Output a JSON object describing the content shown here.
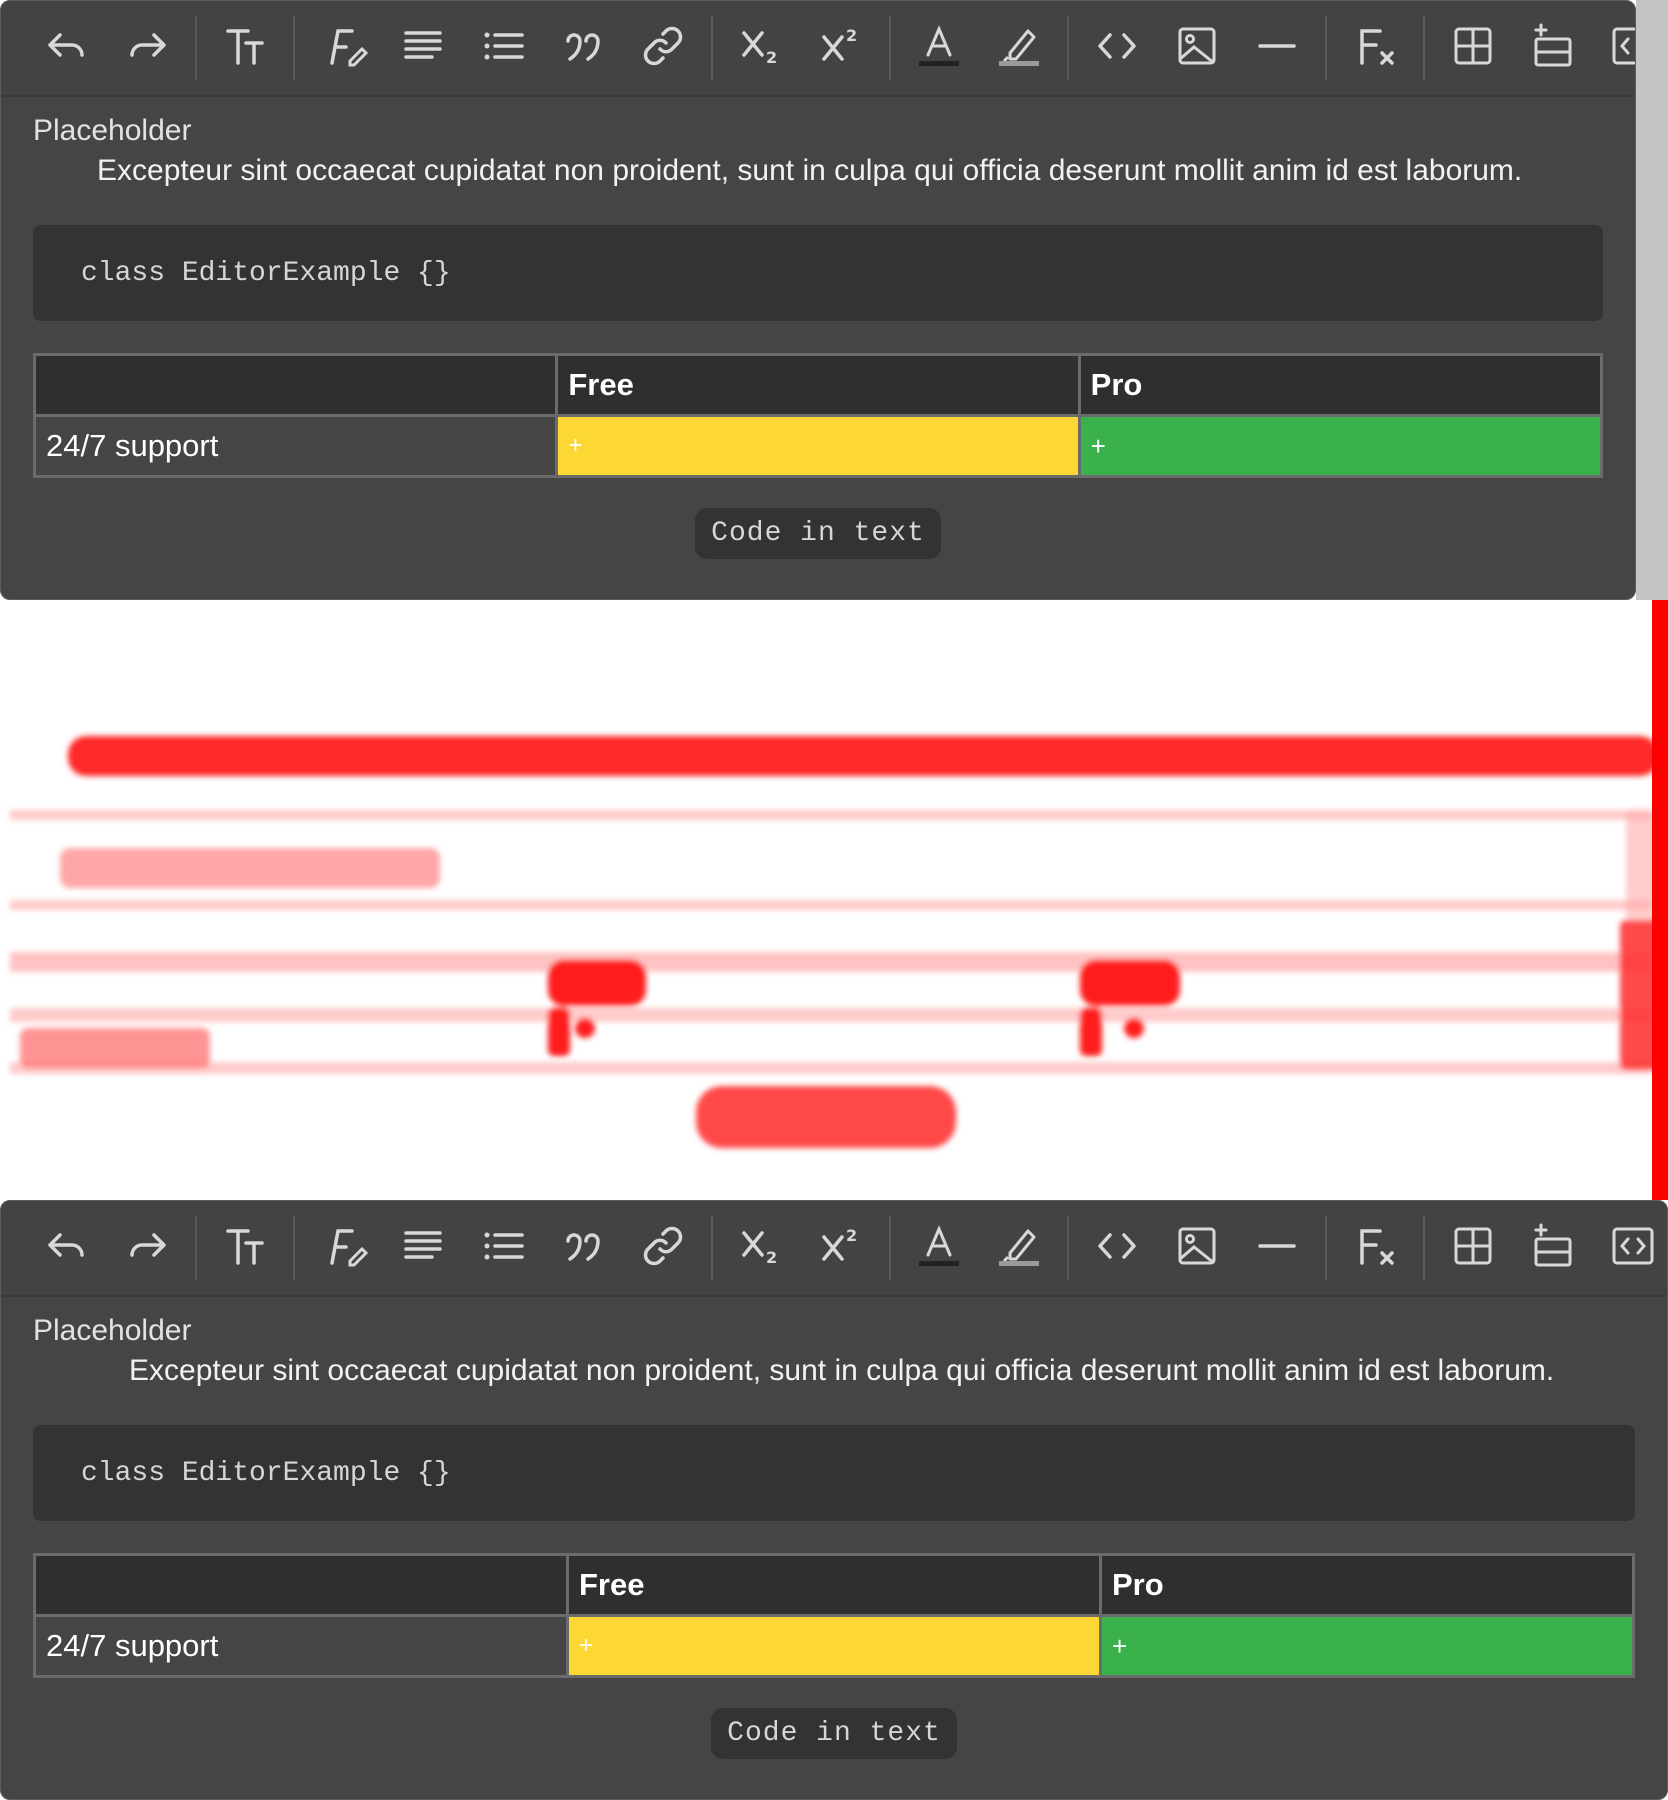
{
  "toolbar": {
    "buttons": [
      {
        "icon": "undo-icon",
        "name": "undo-button"
      },
      {
        "icon": "redo-icon",
        "name": "redo-button"
      },
      {
        "icon": "text-size-icon",
        "name": "text-size-button"
      },
      {
        "icon": "font-style-icon",
        "name": "font-style-button"
      },
      {
        "icon": "align-icon",
        "name": "align-button"
      },
      {
        "icon": "bullet-list-icon",
        "name": "bullet-list-button"
      },
      {
        "icon": "quote-icon",
        "name": "quote-button"
      },
      {
        "icon": "link-icon",
        "name": "link-button"
      },
      {
        "icon": "subscript-icon",
        "name": "subscript-button"
      },
      {
        "icon": "superscript-icon",
        "name": "superscript-button"
      },
      {
        "icon": "text-color-icon",
        "name": "text-color-button"
      },
      {
        "icon": "highlight-icon",
        "name": "highlight-button"
      },
      {
        "icon": "code-icon",
        "name": "code-button"
      },
      {
        "icon": "image-icon",
        "name": "image-button"
      },
      {
        "icon": "horizontal-rule-icon",
        "name": "horizontal-rule-button"
      },
      {
        "icon": "clear-format-icon",
        "name": "clear-format-button"
      },
      {
        "icon": "table-icon",
        "name": "table-button"
      },
      {
        "icon": "insert-row-icon",
        "name": "insert-row-button"
      },
      {
        "icon": "html-source-icon",
        "name": "html-source-button"
      }
    ]
  },
  "editor": {
    "placeholder": "Placeholder",
    "paragraph": "Excepteur sint occaecat cupidatat non proident, sunt in culpa qui officia deserunt mollit anim id est laborum.",
    "code_block": "class EditorExample {}",
    "table": {
      "headers": [
        "",
        "Free",
        "Pro"
      ],
      "row": {
        "label": "24/7 support",
        "free": "+",
        "pro": "+"
      }
    },
    "inline_code": "Code in text"
  },
  "colors": {
    "free_cell": "#fdd835",
    "pro_cell": "#3bb14b",
    "diff_red": "#ff0000"
  }
}
